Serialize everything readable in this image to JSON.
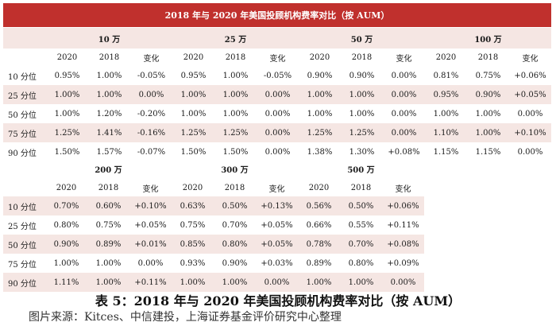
{
  "banner_title": "2018 年与 2020 年美国投顾机构费率对比（按 AUM）",
  "table1": {
    "groups": [
      "10 万",
      "25 万",
      "50 万",
      "100 万"
    ],
    "subheaders": [
      "2020",
      "2018",
      "变化"
    ],
    "rows": [
      {
        "label": "10 分位",
        "cells": [
          "0.95%",
          "1.00%",
          "-0.05%",
          "0.95%",
          "1.00%",
          "-0.05%",
          "0.90%",
          "0.90%",
          "0.00%",
          "0.81%",
          "0.75%",
          "+0.06%"
        ]
      },
      {
        "label": "25 分位",
        "cells": [
          "1.00%",
          "1.00%",
          "0.00%",
          "1.00%",
          "1.00%",
          "0.00%",
          "1.00%",
          "1.00%",
          "0.00%",
          "0.95%",
          "0.90%",
          "+0.05%"
        ]
      },
      {
        "label": "50 分位",
        "cells": [
          "1.00%",
          "1.20%",
          "-0.20%",
          "1.00%",
          "1.00%",
          "0.00%",
          "1.00%",
          "1.00%",
          "0.00%",
          "1.00%",
          "1.00%",
          "0.00%"
        ]
      },
      {
        "label": "75 分位",
        "cells": [
          "1.25%",
          "1.41%",
          "-0.16%",
          "1.25%",
          "1.25%",
          "0.00%",
          "1.25%",
          "1.25%",
          "0.00%",
          "1.10%",
          "1.00%",
          "+0.10%"
        ]
      },
      {
        "label": "90 分位",
        "cells": [
          "1.50%",
          "1.57%",
          "-0.07%",
          "1.50%",
          "1.50%",
          "0.00%",
          "1.38%",
          "1.30%",
          "+0.08%",
          "1.15%",
          "1.15%",
          "0.00%"
        ]
      }
    ]
  },
  "table2": {
    "groups": [
      "200 万",
      "300 万",
      "500 万"
    ],
    "subheaders": [
      "2020",
      "2018",
      "变化"
    ],
    "rows": [
      {
        "label": "10 分位",
        "cells": [
          "0.70%",
          "0.60%",
          "+0.10%",
          "0.63%",
          "0.50%",
          "+0.13%",
          "0.56%",
          "0.50%",
          "+0.06%"
        ]
      },
      {
        "label": "25 分位",
        "cells": [
          "0.80%",
          "0.75%",
          "+0.05%",
          "0.75%",
          "0.70%",
          "+0.05%",
          "0.66%",
          "0.55%",
          "+0.11%"
        ]
      },
      {
        "label": "50 分位",
        "cells": [
          "0.90%",
          "0.89%",
          "+0.01%",
          "0.85%",
          "0.80%",
          "+0.05%",
          "0.78%",
          "0.70%",
          "+0.08%"
        ]
      },
      {
        "label": "75 分位",
        "cells": [
          "1.00%",
          "1.00%",
          "0.00%",
          "0.93%",
          "0.90%",
          "+0.03%",
          "0.89%",
          "0.80%",
          "+0.09%"
        ]
      },
      {
        "label": "90 分位",
        "cells": [
          "1.11%",
          "1.00%",
          "+0.11%",
          "1.00%",
          "1.00%",
          "0.00%",
          "1.00%",
          "1.00%",
          "0.00%"
        ]
      }
    ]
  },
  "caption": "表 5：2018 年与 2020 年美国投顾机构费率对比（按 AUM）",
  "source": "图片来源：Kitces、中信建投，上海证券基金评价研究中心整理"
}
